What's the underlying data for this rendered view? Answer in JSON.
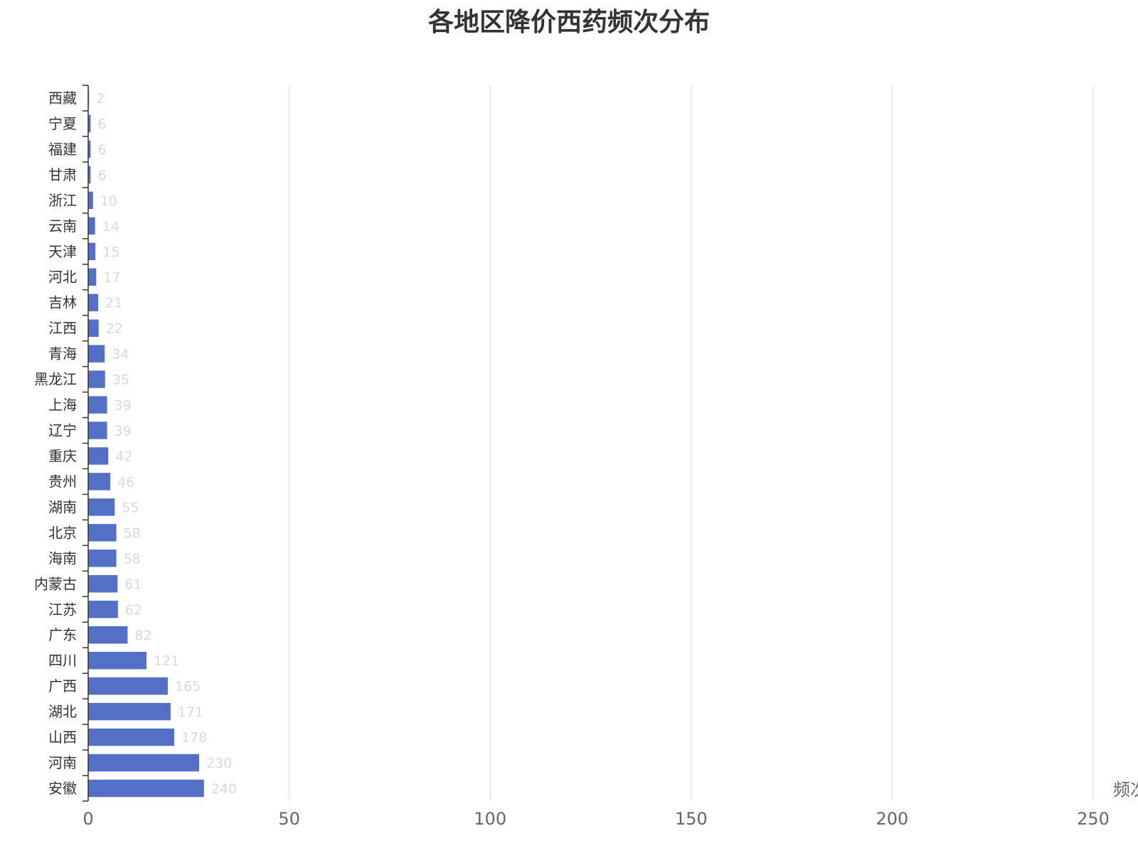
{
  "chart_data": {
    "type": "bar",
    "orientation": "horizontal",
    "title": "各地区降价西药频次分布",
    "xlabel": "频次",
    "ylabel": "",
    "xlim": [
      0,
      250
    ],
    "x_ticks": [
      0,
      50,
      100,
      150,
      200,
      250
    ],
    "grid": true,
    "legend": "none",
    "categories": [
      "西藏",
      "宁夏",
      "福建",
      "甘肃",
      "浙江",
      "云南",
      "天津",
      "河北",
      "吉林",
      "江西",
      "青海",
      "黑龙江",
      "上海",
      "辽宁",
      "重庆",
      "贵州",
      "湖南",
      "北京",
      "海南",
      "内蒙古",
      "江苏",
      "广东",
      "四川",
      "广西",
      "湖北",
      "山西",
      "河南",
      "安徽"
    ],
    "values": [
      2,
      6,
      6,
      6,
      10,
      14,
      15,
      17,
      21,
      22,
      34,
      35,
      39,
      39,
      42,
      46,
      55,
      58,
      58,
      61,
      62,
      82,
      121,
      165,
      171,
      178,
      230,
      240
    ],
    "bar_lengths": [
      0.2,
      0.6,
      0.6,
      0.6,
      1.2,
      1.7,
      1.8,
      2.0,
      2.5,
      2.6,
      4.1,
      4.2,
      4.7,
      4.7,
      5.0,
      5.5,
      6.6,
      7.0,
      7.0,
      7.3,
      7.4,
      9.8,
      14.5,
      19.8,
      20.5,
      21.4,
      27.6,
      28.8
    ],
    "colors": {
      "bar": "#5470c6",
      "grid": "#dbe6f2",
      "axis": "#333333",
      "data_label": "#d9d9d9"
    }
  }
}
